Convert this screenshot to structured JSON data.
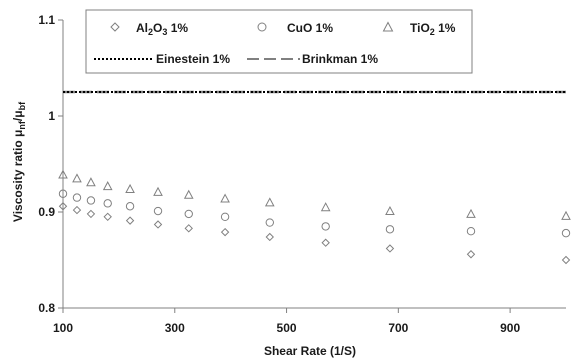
{
  "chart_data": {
    "type": "scatter",
    "title": "",
    "xlabel": "Shear Rate (1/S)",
    "ylabel_prefix": "Viscosity ratio μ",
    "ylabel_sub1": "nf",
    "ylabel_mid": "/μ",
    "ylabel_sub2": "bf",
    "xlim": [
      100,
      1000
    ],
    "ylim": [
      0.8,
      1.1
    ],
    "xticks": [
      100,
      300,
      500,
      700,
      900
    ],
    "xtick_labels": [
      "100",
      "300",
      "500",
      "700",
      "900"
    ],
    "yticks": [
      0.8,
      0.9,
      1.0,
      1.1
    ],
    "ytick_labels": [
      "0.8",
      "0.9",
      "1",
      "1.1"
    ],
    "grid": false,
    "legend_position": "top",
    "colors": {
      "marker": "#808080",
      "line": "#000000",
      "dash": "#808080"
    },
    "x": [
      100,
      125,
      150,
      180,
      220,
      270,
      325,
      390,
      470,
      570,
      685,
      830,
      1000
    ],
    "series": [
      {
        "name_parts": [
          "Al",
          "2",
          "O",
          "3",
          " 1%"
        ],
        "marker": "diamond",
        "values": [
          0.906,
          0.902,
          0.898,
          0.895,
          0.891,
          0.887,
          0.883,
          0.879,
          0.874,
          0.868,
          0.862,
          0.856,
          0.85
        ]
      },
      {
        "name": "CuO 1%",
        "marker": "circle",
        "values": [
          0.919,
          0.915,
          0.912,
          0.909,
          0.906,
          0.901,
          0.898,
          0.895,
          0.889,
          0.885,
          0.882,
          0.88,
          0.878
        ]
      },
      {
        "name_parts": [
          "TiO",
          "2",
          " 1%"
        ],
        "marker": "triangle",
        "values": [
          0.939,
          0.935,
          0.931,
          0.927,
          0.924,
          0.921,
          0.918,
          0.914,
          0.91,
          0.905,
          0.901,
          0.898,
          0.896
        ]
      },
      {
        "name": "Einestein 1%",
        "style": "dotted-line",
        "values": [
          1.025,
          1.025,
          1.025,
          1.025,
          1.025,
          1.025,
          1.025,
          1.025,
          1.025,
          1.025,
          1.025,
          1.025,
          1.025
        ]
      },
      {
        "name": "Brinkman 1%",
        "style": "dashed-line",
        "values": [
          1.025,
          1.025,
          1.025,
          1.025,
          1.025,
          1.025,
          1.025,
          1.025,
          1.025,
          1.025,
          1.025,
          1.025,
          1.025
        ]
      }
    ]
  }
}
